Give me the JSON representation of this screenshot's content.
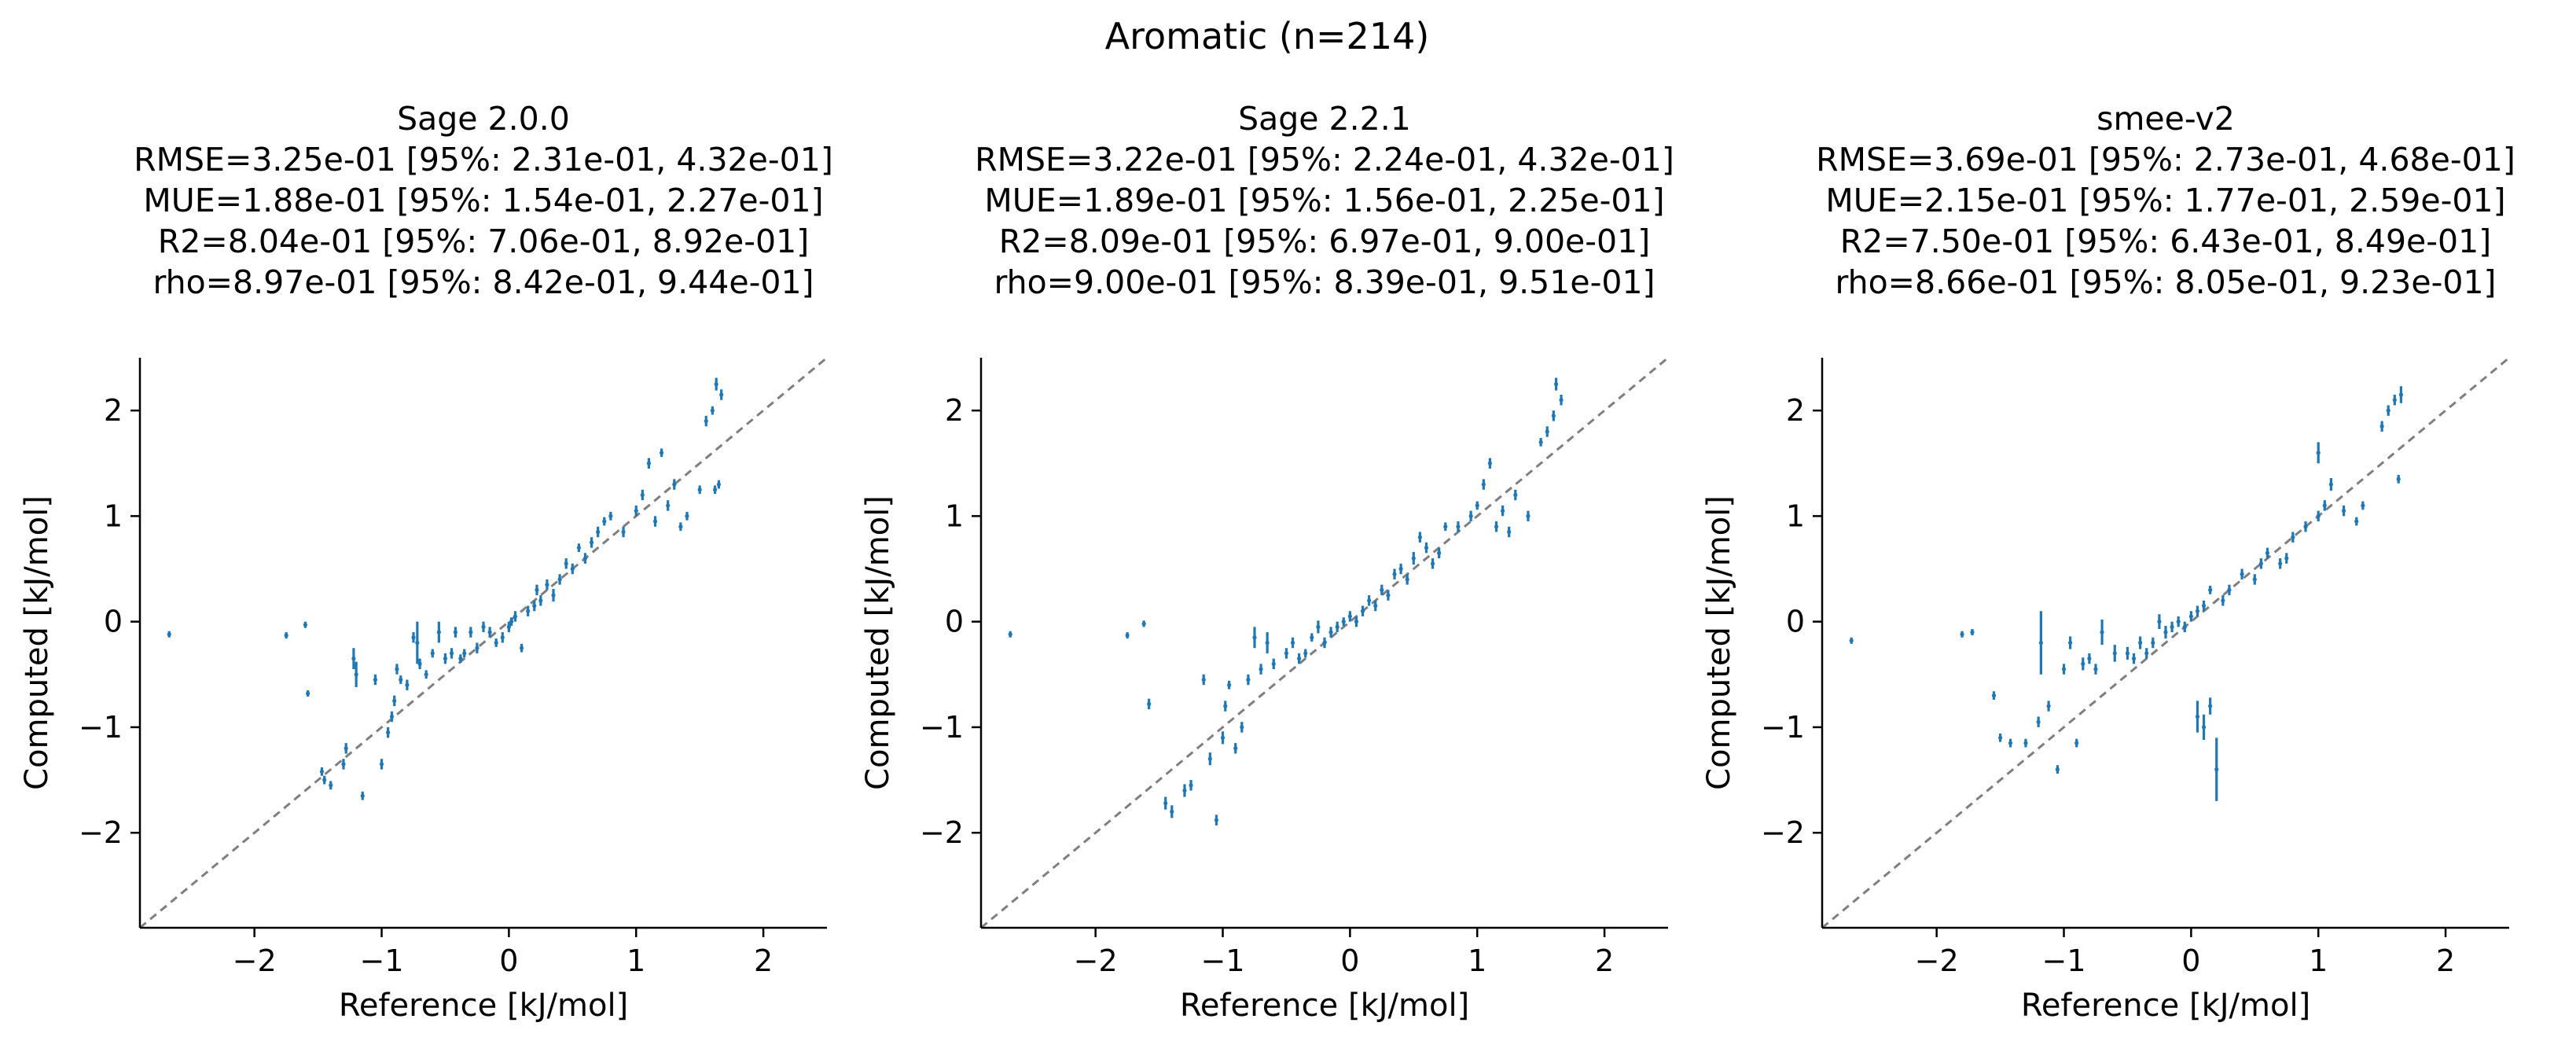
{
  "figure": {
    "suptitle": "Aromatic (n=214)",
    "colors": {
      "series": "#1f77b4",
      "diagonal": "#7f7f7f",
      "axis": "#000000",
      "background": "#ffffff"
    }
  },
  "chart_data": [
    {
      "type": "scatter",
      "title_lines": [
        "Sage 2.0.0",
        "RMSE=3.25e-01 [95%: 2.31e-01, 4.32e-01]",
        "MUE=1.88e-01 [95%: 1.54e-01, 2.27e-01]",
        "R2=8.04e-01 [95%: 7.06e-01, 8.92e-01]",
        "rho=8.97e-01 [95%: 8.42e-01, 9.44e-01]"
      ],
      "xlabel": "Reference [kJ/mol]",
      "ylabel": "Computed [kJ/mol]",
      "xlim": [
        -2.9,
        2.5
      ],
      "ylim": [
        -2.9,
        2.5
      ],
      "xticks": [
        -2,
        -1,
        0,
        1,
        2
      ],
      "yticks": [
        -2,
        -1,
        0,
        1,
        2
      ],
      "xtick_labels": [
        "−2",
        "−1",
        "0",
        "1",
        "2"
      ],
      "ytick_labels": [
        "−2",
        "−1",
        "0",
        "1",
        "2"
      ],
      "diagonal": true,
      "points": [
        [
          -2.67,
          -0.12,
          0.03
        ],
        [
          -1.75,
          -0.13,
          0.03
        ],
        [
          -1.6,
          -0.03,
          0.03
        ],
        [
          -1.58,
          -0.68,
          0.03
        ],
        [
          -1.47,
          -1.42,
          0.04
        ],
        [
          -1.45,
          -1.5,
          0.04
        ],
        [
          -1.4,
          -1.55,
          0.04
        ],
        [
          -1.3,
          -1.35,
          0.05
        ],
        [
          -1.28,
          -1.2,
          0.05
        ],
        [
          -1.22,
          -0.35,
          0.1
        ],
        [
          -1.2,
          -0.5,
          0.12
        ],
        [
          -1.15,
          -1.65,
          0.04
        ],
        [
          -1.05,
          -0.55,
          0.05
        ],
        [
          -1.0,
          -1.35,
          0.05
        ],
        [
          -0.95,
          -1.05,
          0.05
        ],
        [
          -0.92,
          -0.9,
          0.05
        ],
        [
          -0.9,
          -0.75,
          0.05
        ],
        [
          -0.88,
          -0.45,
          0.05
        ],
        [
          -0.85,
          -0.55,
          0.04
        ],
        [
          -0.8,
          -0.6,
          0.05
        ],
        [
          -0.75,
          -0.15,
          0.05
        ],
        [
          -0.72,
          -0.2,
          0.2
        ],
        [
          -0.7,
          -0.4,
          0.05
        ],
        [
          -0.65,
          -0.5,
          0.04
        ],
        [
          -0.6,
          -0.3,
          0.04
        ],
        [
          -0.55,
          -0.1,
          0.1
        ],
        [
          -0.5,
          -0.35,
          0.05
        ],
        [
          -0.45,
          -0.3,
          0.05
        ],
        [
          -0.42,
          -0.1,
          0.05
        ],
        [
          -0.38,
          -0.35,
          0.04
        ],
        [
          -0.35,
          -0.3,
          0.04
        ],
        [
          -0.3,
          -0.1,
          0.05
        ],
        [
          -0.25,
          -0.25,
          0.05
        ],
        [
          -0.2,
          -0.05,
          0.05
        ],
        [
          -0.15,
          -0.1,
          0.05
        ],
        [
          -0.1,
          -0.2,
          0.04
        ],
        [
          -0.05,
          -0.15,
          0.05
        ],
        [
          0.0,
          -0.05,
          0.05
        ],
        [
          0.02,
          0.0,
          0.04
        ],
        [
          0.05,
          0.05,
          0.05
        ],
        [
          0.1,
          -0.25,
          0.04
        ],
        [
          0.15,
          0.1,
          0.05
        ],
        [
          0.2,
          0.15,
          0.05
        ],
        [
          0.22,
          0.3,
          0.05
        ],
        [
          0.25,
          0.2,
          0.05
        ],
        [
          0.3,
          0.35,
          0.05
        ],
        [
          0.35,
          0.25,
          0.06
        ],
        [
          0.4,
          0.4,
          0.05
        ],
        [
          0.45,
          0.55,
          0.05
        ],
        [
          0.5,
          0.5,
          0.05
        ],
        [
          0.55,
          0.7,
          0.04
        ],
        [
          0.6,
          0.6,
          0.05
        ],
        [
          0.65,
          0.75,
          0.05
        ],
        [
          0.7,
          0.85,
          0.05
        ],
        [
          0.75,
          0.95,
          0.04
        ],
        [
          0.8,
          1.0,
          0.04
        ],
        [
          0.9,
          0.85,
          0.05
        ],
        [
          1.0,
          1.05,
          0.05
        ],
        [
          1.05,
          1.2,
          0.05
        ],
        [
          1.1,
          1.5,
          0.05
        ],
        [
          1.15,
          0.95,
          0.05
        ],
        [
          1.2,
          1.6,
          0.04
        ],
        [
          1.25,
          1.1,
          0.05
        ],
        [
          1.3,
          1.3,
          0.05
        ],
        [
          1.35,
          0.9,
          0.04
        ],
        [
          1.4,
          1.0,
          0.04
        ],
        [
          1.5,
          1.25,
          0.04
        ],
        [
          1.55,
          1.9,
          0.05
        ],
        [
          1.6,
          2.0,
          0.04
        ],
        [
          1.63,
          2.25,
          0.06
        ],
        [
          1.67,
          2.15,
          0.05
        ],
        [
          1.65,
          1.3,
          0.04
        ],
        [
          1.62,
          1.25,
          0.04
        ]
      ]
    },
    {
      "type": "scatter",
      "title_lines": [
        "Sage 2.2.1",
        "RMSE=3.22e-01 [95%: 2.24e-01, 4.32e-01]",
        "MUE=1.89e-01 [95%: 1.56e-01, 2.25e-01]",
        "R2=8.09e-01 [95%: 6.97e-01, 9.00e-01]",
        "rho=9.00e-01 [95%: 8.39e-01, 9.51e-01]"
      ],
      "xlabel": "Reference [kJ/mol]",
      "ylabel": "Computed [kJ/mol]",
      "xlim": [
        -2.9,
        2.5
      ],
      "ylim": [
        -2.9,
        2.5
      ],
      "xticks": [
        -2,
        -1,
        0,
        1,
        2
      ],
      "yticks": [
        -2,
        -1,
        0,
        1,
        2
      ],
      "xtick_labels": [
        "−2",
        "−1",
        "0",
        "1",
        "2"
      ],
      "ytick_labels": [
        "−2",
        "−1",
        "0",
        "1",
        "2"
      ],
      "diagonal": true,
      "points": [
        [
          -2.67,
          -0.12,
          0.03
        ],
        [
          -1.75,
          -0.13,
          0.03
        ],
        [
          -1.62,
          -0.02,
          0.03
        ],
        [
          -1.58,
          -0.78,
          0.05
        ],
        [
          -1.45,
          -1.72,
          0.06
        ],
        [
          -1.4,
          -1.8,
          0.06
        ],
        [
          -1.3,
          -1.6,
          0.06
        ],
        [
          -1.25,
          -1.55,
          0.05
        ],
        [
          -1.15,
          -0.55,
          0.05
        ],
        [
          -1.1,
          -1.3,
          0.06
        ],
        [
          -1.05,
          -1.88,
          0.05
        ],
        [
          -1.0,
          -1.1,
          0.06
        ],
        [
          -0.98,
          -0.8,
          0.05
        ],
        [
          -0.95,
          -0.6,
          0.04
        ],
        [
          -0.9,
          -1.2,
          0.05
        ],
        [
          -0.85,
          -1.0,
          0.05
        ],
        [
          -0.8,
          -0.55,
          0.05
        ],
        [
          -0.75,
          -0.15,
          0.1
        ],
        [
          -0.7,
          -0.45,
          0.05
        ],
        [
          -0.65,
          -0.2,
          0.1
        ],
        [
          -0.6,
          -0.4,
          0.05
        ],
        [
          -0.5,
          -0.3,
          0.05
        ],
        [
          -0.45,
          -0.2,
          0.05
        ],
        [
          -0.4,
          -0.35,
          0.05
        ],
        [
          -0.35,
          -0.3,
          0.04
        ],
        [
          -0.3,
          -0.15,
          0.04
        ],
        [
          -0.25,
          -0.05,
          0.06
        ],
        [
          -0.2,
          -0.2,
          0.05
        ],
        [
          -0.15,
          -0.1,
          0.05
        ],
        [
          -0.1,
          -0.05,
          0.05
        ],
        [
          -0.05,
          0.0,
          0.04
        ],
        [
          0.0,
          0.05,
          0.05
        ],
        [
          0.05,
          0.0,
          0.05
        ],
        [
          0.1,
          0.1,
          0.05
        ],
        [
          0.15,
          0.2,
          0.05
        ],
        [
          0.2,
          0.15,
          0.05
        ],
        [
          0.25,
          0.3,
          0.05
        ],
        [
          0.3,
          0.25,
          0.05
        ],
        [
          0.35,
          0.45,
          0.05
        ],
        [
          0.4,
          0.5,
          0.05
        ],
        [
          0.45,
          0.4,
          0.05
        ],
        [
          0.5,
          0.6,
          0.06
        ],
        [
          0.55,
          0.8,
          0.05
        ],
        [
          0.6,
          0.7,
          0.05
        ],
        [
          0.65,
          0.55,
          0.05
        ],
        [
          0.7,
          0.65,
          0.05
        ],
        [
          0.75,
          0.9,
          0.04
        ],
        [
          0.85,
          0.9,
          0.05
        ],
        [
          0.95,
          1.0,
          0.05
        ],
        [
          1.0,
          1.1,
          0.04
        ],
        [
          1.05,
          1.3,
          0.05
        ],
        [
          1.1,
          1.5,
          0.05
        ],
        [
          1.15,
          0.9,
          0.05
        ],
        [
          1.2,
          1.05,
          0.05
        ],
        [
          1.25,
          0.85,
          0.05
        ],
        [
          1.3,
          1.2,
          0.05
        ],
        [
          1.4,
          1.0,
          0.05
        ],
        [
          1.5,
          1.7,
          0.04
        ],
        [
          1.55,
          1.8,
          0.05
        ],
        [
          1.6,
          1.95,
          0.05
        ],
        [
          1.62,
          2.25,
          0.06
        ],
        [
          1.66,
          2.1,
          0.05
        ]
      ]
    },
    {
      "type": "scatter",
      "title_lines": [
        "smee-v2",
        "RMSE=3.69e-01 [95%: 2.73e-01, 4.68e-01]",
        "MUE=2.15e-01 [95%: 1.77e-01, 2.59e-01]",
        "R2=7.50e-01 [95%: 6.43e-01, 8.49e-01]",
        "rho=8.66e-01 [95%: 8.05e-01, 9.23e-01]"
      ],
      "xlabel": "Reference [kJ/mol]",
      "ylabel": "Computed [kJ/mol]",
      "xlim": [
        -2.9,
        2.5
      ],
      "ylim": [
        -2.9,
        2.5
      ],
      "xticks": [
        -2,
        -1,
        0,
        1,
        2
      ],
      "yticks": [
        -2,
        -1,
        0,
        1,
        2
      ],
      "xtick_labels": [
        "−2",
        "−1",
        "0",
        "1",
        "2"
      ],
      "ytick_labels": [
        "−2",
        "−1",
        "0",
        "1",
        "2"
      ],
      "diagonal": true,
      "points": [
        [
          -2.67,
          -0.18,
          0.03
        ],
        [
          -1.8,
          -0.12,
          0.03
        ],
        [
          -1.72,
          -0.1,
          0.03
        ],
        [
          -1.55,
          -0.7,
          0.04
        ],
        [
          -1.5,
          -1.1,
          0.04
        ],
        [
          -1.42,
          -1.15,
          0.04
        ],
        [
          -1.3,
          -1.15,
          0.04
        ],
        [
          -1.2,
          -0.95,
          0.05
        ],
        [
          -1.18,
          -0.2,
          0.3
        ],
        [
          -1.12,
          -0.8,
          0.05
        ],
        [
          -1.05,
          -1.4,
          0.04
        ],
        [
          -1.0,
          -0.45,
          0.05
        ],
        [
          -0.95,
          -0.2,
          0.06
        ],
        [
          -0.9,
          -1.15,
          0.04
        ],
        [
          -0.85,
          -0.4,
          0.06
        ],
        [
          -0.8,
          -0.35,
          0.05
        ],
        [
          -0.75,
          -0.45,
          0.05
        ],
        [
          -0.7,
          -0.1,
          0.12
        ],
        [
          -0.6,
          -0.3,
          0.08
        ],
        [
          -0.5,
          -0.3,
          0.06
        ],
        [
          -0.45,
          -0.35,
          0.05
        ],
        [
          -0.4,
          -0.2,
          0.06
        ],
        [
          -0.35,
          -0.3,
          0.05
        ],
        [
          -0.3,
          -0.2,
          0.05
        ],
        [
          -0.25,
          0.0,
          0.07
        ],
        [
          -0.2,
          -0.1,
          0.06
        ],
        [
          -0.15,
          -0.05,
          0.05
        ],
        [
          -0.1,
          0.0,
          0.05
        ],
        [
          -0.05,
          -0.05,
          0.05
        ],
        [
          0.0,
          0.05,
          0.05
        ],
        [
          0.05,
          0.1,
          0.05
        ],
        [
          0.1,
          0.15,
          0.05
        ],
        [
          0.15,
          0.3,
          0.04
        ],
        [
          0.05,
          -0.9,
          0.15
        ],
        [
          0.1,
          -1.0,
          0.12
        ],
        [
          0.15,
          -0.8,
          0.08
        ],
        [
          0.2,
          -1.4,
          0.3
        ],
        [
          0.25,
          0.2,
          0.05
        ],
        [
          0.3,
          0.3,
          0.05
        ],
        [
          0.4,
          0.45,
          0.05
        ],
        [
          0.5,
          0.4,
          0.05
        ],
        [
          0.55,
          0.55,
          0.05
        ],
        [
          0.6,
          0.65,
          0.05
        ],
        [
          0.7,
          0.55,
          0.05
        ],
        [
          0.75,
          0.6,
          0.05
        ],
        [
          0.8,
          0.8,
          0.05
        ],
        [
          0.9,
          0.9,
          0.05
        ],
        [
          1.0,
          1.6,
          0.1
        ],
        [
          1.0,
          1.0,
          0.05
        ],
        [
          1.05,
          1.1,
          0.05
        ],
        [
          1.1,
          1.3,
          0.06
        ],
        [
          1.2,
          1.05,
          0.05
        ],
        [
          1.3,
          0.95,
          0.04
        ],
        [
          1.35,
          1.1,
          0.04
        ],
        [
          1.5,
          1.85,
          0.05
        ],
        [
          1.55,
          2.0,
          0.05
        ],
        [
          1.6,
          2.1,
          0.05
        ],
        [
          1.65,
          2.15,
          0.08
        ],
        [
          1.63,
          1.35,
          0.04
        ]
      ]
    }
  ]
}
